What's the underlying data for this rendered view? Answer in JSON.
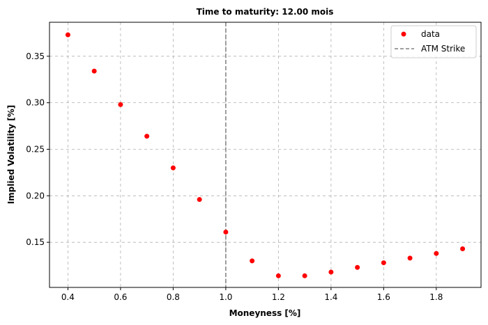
{
  "chart_data": {
    "type": "scatter",
    "title": "Time to maturity: 12.00 mois",
    "xlabel": "Moneyness [%]",
    "ylabel": "Implied Volatility [%]",
    "xlim": [
      0.33,
      1.97
    ],
    "ylim": [
      0.1015,
      0.3865
    ],
    "xticks": [
      0.4,
      0.6,
      0.8,
      1.0,
      1.2,
      1.4,
      1.6,
      1.8
    ],
    "xtick_labels": [
      "0.4",
      "0.6",
      "0.8",
      "1.0",
      "1.2",
      "1.4",
      "1.6",
      "1.8"
    ],
    "yticks": [
      0.15,
      0.2,
      0.25,
      0.3,
      0.35
    ],
    "ytick_labels": [
      "0.15",
      "0.20",
      "0.25",
      "0.30",
      "0.35"
    ],
    "grid": true,
    "legend_position": "top-right",
    "series": [
      {
        "name": "data",
        "color": "#ff0000",
        "x": [
          0.4,
          0.5,
          0.6,
          0.7,
          0.8,
          0.9,
          1.0,
          1.1,
          1.2,
          1.3,
          1.4,
          1.5,
          1.6,
          1.7,
          1.8,
          1.9
        ],
        "y": [
          0.373,
          0.334,
          0.298,
          0.264,
          0.23,
          0.196,
          0.161,
          0.13,
          0.114,
          0.114,
          0.118,
          0.123,
          0.128,
          0.133,
          0.138,
          0.143
        ]
      }
    ],
    "reference_lines": [
      {
        "name": "ATM Strike",
        "orientation": "vertical",
        "x": 1.0,
        "color": "#808080",
        "style": "dashed"
      }
    ]
  }
}
